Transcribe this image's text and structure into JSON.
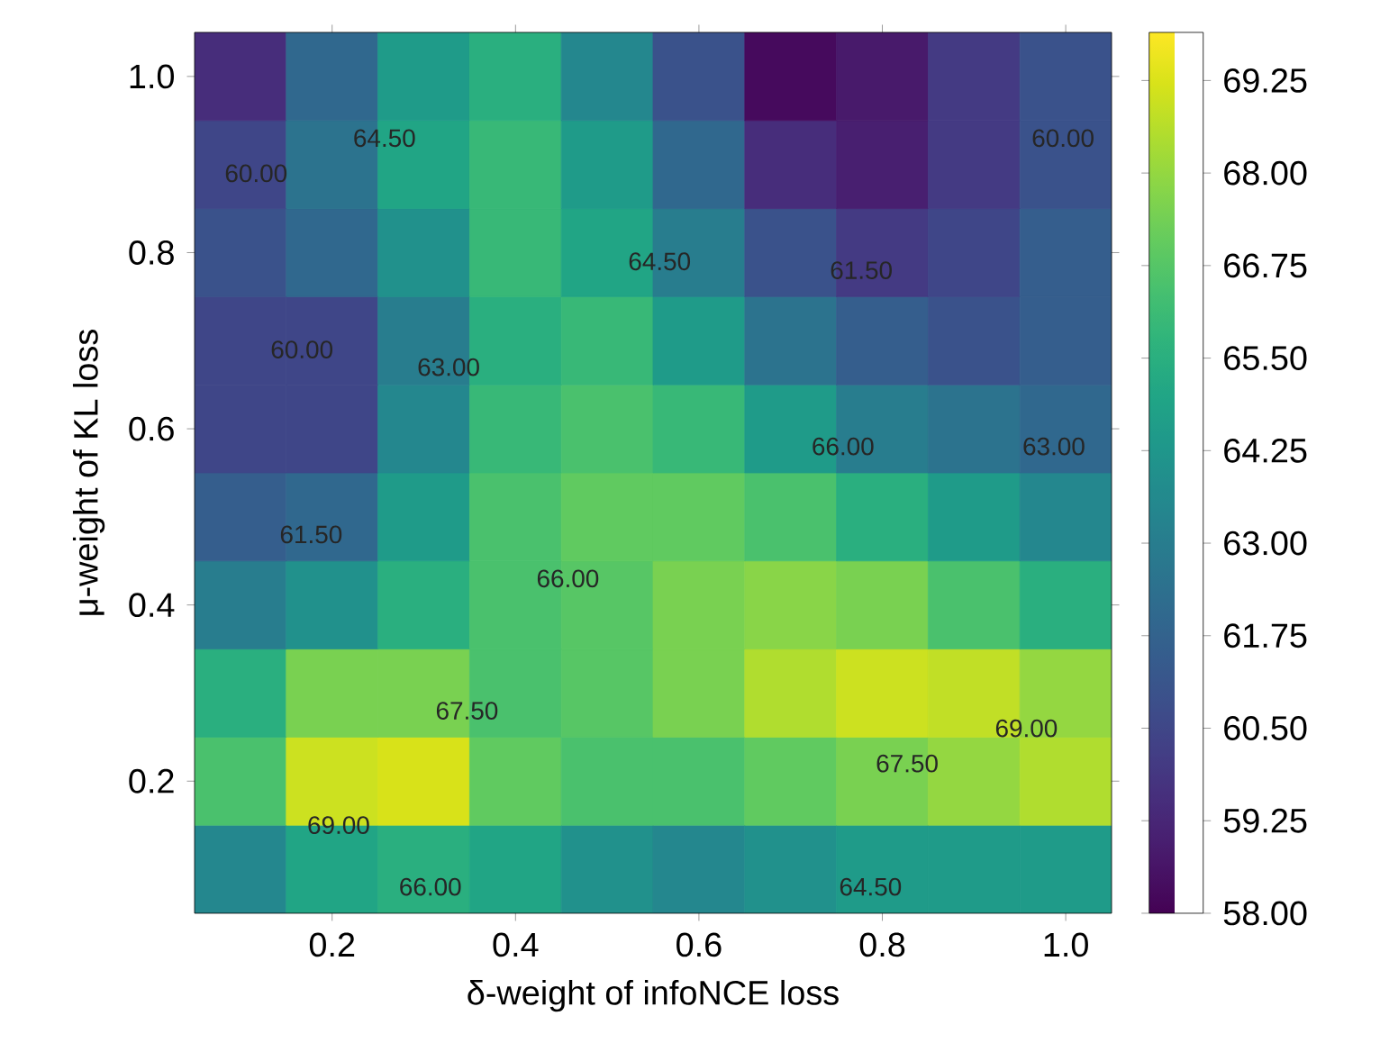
{
  "chart_data": {
    "type": "heatmap",
    "xlabel": "δ-weight of infoNCE loss",
    "ylabel": "μ-weight of KL loss",
    "categories": [
      null,
      "0.2",
      null,
      "0.4",
      null,
      "0.6",
      null,
      "0.8",
      null,
      "1.0"
    ],
    "y_categories": [
      "1.0",
      null,
      "0.8",
      null,
      "0.6",
      null,
      "0.4",
      null,
      "0.2",
      null
    ],
    "cells": [
      [
        59.5,
        62,
        64.5,
        65.5,
        63.5,
        61,
        58.3,
        58.8,
        60,
        61
      ],
      [
        60.5,
        62.5,
        65,
        66,
        64.5,
        62,
        59.5,
        59,
        60,
        61
      ],
      [
        61,
        62,
        64,
        66,
        65,
        63,
        61,
        60,
        60.5,
        61.5
      ],
      [
        60.5,
        60.5,
        63,
        65.5,
        66,
        64.5,
        62.5,
        61.5,
        61,
        61.5
      ],
      [
        60.5,
        60.5,
        63.5,
        66,
        66.5,
        66,
        64.5,
        63,
        62.5,
        62
      ],
      [
        61.5,
        62,
        64.5,
        66.5,
        67,
        67,
        66.5,
        65.5,
        64.5,
        63.5
      ],
      [
        63,
        64,
        65.5,
        66.5,
        66.8,
        67.5,
        67.8,
        67.5,
        66.5,
        65.5
      ],
      [
        65.5,
        67.5,
        67.5,
        66.5,
        66.8,
        67.5,
        68.5,
        69,
        68.8,
        68
      ],
      [
        66.5,
        69,
        69.2,
        67,
        66.5,
        66.5,
        67,
        67.5,
        68,
        68.5
      ],
      [
        63.5,
        65,
        65.5,
        65,
        64,
        63.5,
        64,
        64.5,
        64.5,
        64.5
      ]
    ],
    "clim": [
      58,
      69.9
    ],
    "cticks": [
      {
        "value": 58,
        "label": "58.00"
      },
      {
        "value": 59.25,
        "label": "59.25"
      },
      {
        "value": 60.5,
        "label": "60.50"
      },
      {
        "value": 61.75,
        "label": "61.75"
      },
      {
        "value": 63,
        "label": "63.00"
      },
      {
        "value": 64.25,
        "label": "64.25"
      },
      {
        "value": 65.5,
        "label": "65.50"
      },
      {
        "value": 66.75,
        "label": "66.75"
      },
      {
        "value": 68,
        "label": "68.00"
      },
      {
        "value": 69.25,
        "label": "69.25"
      }
    ],
    "annotations": [
      "60.00",
      "64.50",
      "60.00",
      "63.00",
      "64.50",
      "61.50",
      "60.00",
      "66.00",
      "63.00",
      "61.50",
      "66.00",
      "67.50",
      "69.00",
      "66.00",
      "64.50",
      "67.50",
      "69.00"
    ]
  }
}
